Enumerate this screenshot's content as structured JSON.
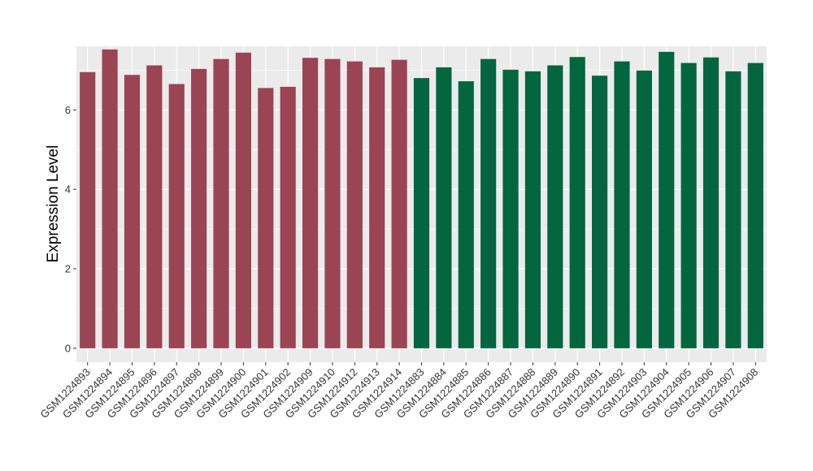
{
  "chart_data": {
    "type": "bar",
    "ylabel": "Expression Level",
    "xlabel": "",
    "ylim": [
      -0.35,
      7.6
    ],
    "yticks": [
      0,
      2,
      4,
      6
    ],
    "grid": true,
    "panel_background": "#EBEBEB",
    "grid_color": "#FFFFFF",
    "group_colors": [
      "#9B4453",
      "#036641"
    ],
    "categories": [
      "GSM1224893",
      "GSM1224894",
      "GSM1224895",
      "GSM1224896",
      "GSM1224897",
      "GSM1224898",
      "GSM1224899",
      "GSM1224900",
      "GSM1224901",
      "GSM1224902",
      "GSM1224909",
      "GSM1224910",
      "GSM1224912",
      "GSM1224913",
      "GSM1224914",
      "GSM1224883",
      "GSM1224884",
      "GSM1224885",
      "GSM1224886",
      "GSM1224887",
      "GSM1224888",
      "GSM1224889",
      "GSM1224890",
      "GSM1224891",
      "GSM1224892",
      "GSM1224903",
      "GSM1224904",
      "GSM1224905",
      "GSM1224906",
      "GSM1224907",
      "GSM1224908"
    ],
    "values": [
      6.95,
      7.52,
      6.88,
      7.12,
      6.65,
      7.03,
      7.28,
      7.44,
      6.55,
      6.58,
      7.31,
      7.28,
      7.22,
      7.07,
      7.26,
      6.8,
      7.07,
      6.72,
      7.28,
      7.01,
      6.97,
      7.12,
      7.33,
      6.86,
      7.22,
      6.99,
      7.46,
      7.18,
      7.32,
      6.97,
      7.18
    ],
    "groups": [
      0,
      0,
      0,
      0,
      0,
      0,
      0,
      0,
      0,
      0,
      0,
      0,
      0,
      0,
      0,
      1,
      1,
      1,
      1,
      1,
      1,
      1,
      1,
      1,
      1,
      1,
      1,
      1,
      1,
      1,
      1
    ]
  }
}
